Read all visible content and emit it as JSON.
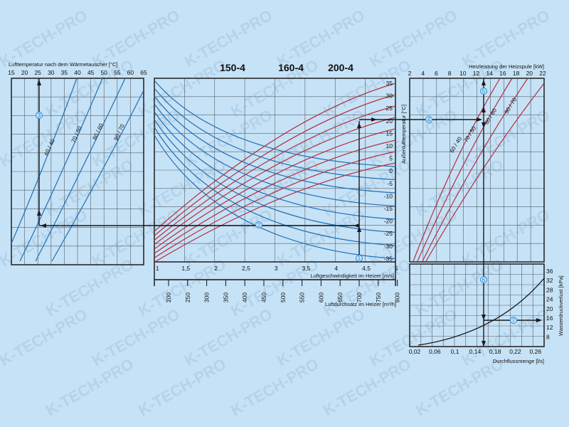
{
  "watermark": "K-TECH-PRO",
  "colors": {
    "background": "#c6e2f6",
    "blue_curves": "#1f6fb5",
    "red_curves": "#b3303e",
    "grid": "#55606c",
    "arrows": "#1a1a1a",
    "markers": "#2a8ad6"
  },
  "headers": [
    "150-4",
    "160-4",
    "200-4"
  ],
  "chart_data": [
    {
      "type": "line",
      "title": "Lufttemperatur nach dem Wärmetauscher [°C]",
      "x_ticks": [
        "15",
        "20",
        "25",
        "30",
        "35",
        "40",
        "45",
        "50",
        "55",
        "60",
        "65"
      ],
      "xlim": [
        15,
        65
      ],
      "grid": true,
      "series": [
        {
          "name": "60 / 40"
        },
        {
          "name": "70 / 50"
        },
        {
          "name": "80 / 60"
        },
        {
          "name": "90 / 70"
        }
      ]
    },
    {
      "type": "line",
      "xlabel": "Luftgeschwindigkeit im Heizer [m/s]",
      "x_ticks": [
        "1",
        "1,5",
        "2",
        "2,5",
        "3",
        "3,5",
        "4",
        "4,5",
        "5"
      ],
      "xlim": [
        1,
        5
      ],
      "x2label": "Luftdurchsatz im Heizer [m³/h]",
      "x2_ticks": [
        "200",
        "250",
        "300",
        "350",
        "400",
        "450",
        "500",
        "550",
        "600",
        "650",
        "700",
        "750",
        "800"
      ],
      "x2lim": [
        200,
        800
      ],
      "ylabel": "Außenlufttemperatur [°C]",
      "y_ticks": [
        "35",
        "30",
        "25",
        "20",
        "15",
        "10",
        "5",
        "0",
        "-5",
        "-10",
        "-15",
        "-20",
        "-25",
        "-30",
        "-35"
      ],
      "grid": true,
      "series_blue": [
        "0",
        "-5",
        "-10",
        "-15",
        "-20",
        "-25",
        "-30",
        "-35"
      ],
      "series_red": [
        "35",
        "30",
        "25",
        "20",
        "15",
        "10",
        "5",
        "0"
      ]
    },
    {
      "type": "line",
      "title": "Heizleistung der Heizspule [kW]",
      "x_ticks": [
        "2",
        "4",
        "6",
        "8",
        "10",
        "12",
        "14",
        "16",
        "18",
        "20",
        "22"
      ],
      "xlim": [
        2,
        22
      ],
      "grid": true,
      "series": [
        {
          "name": "60 / 40"
        },
        {
          "name": "70 / 50"
        },
        {
          "name": "80 / 60"
        },
        {
          "name": "90 / 70"
        }
      ]
    },
    {
      "type": "line",
      "xlabel": "Durchflussmenge [l/s]",
      "x_ticks": [
        "0,02",
        "0,06",
        "0,1",
        "0,14",
        "0,18",
        "0,22",
        "0,26"
      ],
      "xlim": [
        0.02,
        0.26
      ],
      "ylabel": "Wasserdruckverlust [kPa]",
      "y_ticks": [
        "36",
        "32",
        "28",
        "24",
        "20",
        "16",
        "12",
        "8"
      ],
      "ylim": [
        8,
        36
      ],
      "grid": true
    }
  ],
  "example_path": {
    "airflow_m3h": 700,
    "air_speed_ms": 4.4,
    "air_temp_after_c": 26,
    "heating_power_kw": 13.2,
    "flow_ls": 0.16,
    "pressure_loss_kpa": 15,
    "step_markers": [
      "1",
      "2",
      "3",
      "4",
      "5",
      "6",
      "7"
    ]
  }
}
